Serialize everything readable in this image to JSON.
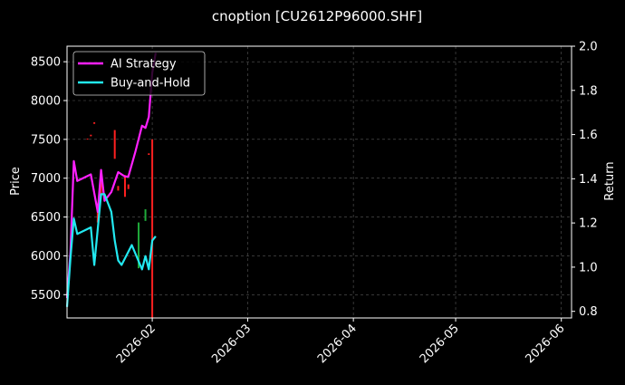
{
  "chart_data": {
    "type": "line",
    "title": "cnoption [CU2612P96000.SHF]",
    "ylabel": "Price",
    "y2label": "Return",
    "grid": true,
    "legend_placement": "top-left",
    "background": "#000000",
    "x_ticks": [
      "2026-02",
      "2026-03",
      "2026-04",
      "2026-05",
      "2026-06"
    ],
    "x_tick_dates": [
      "2026-02-01",
      "2026-03-01",
      "2026-04-01",
      "2026-05-01",
      "2026-06-01"
    ],
    "xlim": [
      "2026-01-07",
      "2026-06-04"
    ],
    "ylim": [
      5200,
      8700
    ],
    "y_ticks": [
      "5500",
      "6000",
      "6500",
      "7000",
      "7500",
      "8000",
      "8500"
    ],
    "y_tick_values": [
      5500,
      6000,
      6500,
      7000,
      7500,
      8000,
      8500
    ],
    "y2lim": [
      0.77,
      2.0
    ],
    "y2_ticks": [
      "0.8",
      "1.0",
      "1.2",
      "1.4",
      "1.6",
      "1.8",
      "2.0"
    ],
    "y2_tick_values": [
      0.8,
      1.0,
      1.2,
      1.4,
      1.6,
      1.8,
      2.0
    ],
    "candles": [
      {
        "date": "2026-01-13",
        "open": 7510,
        "close": 7500,
        "color": "#ff2020"
      },
      {
        "date": "2026-01-14",
        "open": 7560,
        "close": 7540,
        "color": "#ff2020"
      },
      {
        "date": "2026-01-15",
        "open": 7720,
        "close": 7700,
        "color": "#ff2020"
      },
      {
        "date": "2026-01-16",
        "open": 6600,
        "close": 6430,
        "color": "#ff2020"
      },
      {
        "date": "2026-01-17",
        "open": 6980,
        "close": 6800,
        "color": "#ff2020"
      },
      {
        "date": "2026-01-21",
        "open": 7620,
        "close": 7250,
        "color": "#ff2020"
      },
      {
        "date": "2026-01-22",
        "open": 6900,
        "close": 6840,
        "color": "#ff2020"
      },
      {
        "date": "2026-01-24",
        "open": 7040,
        "close": 6760,
        "color": "#ff2020"
      },
      {
        "date": "2026-01-25",
        "open": 6920,
        "close": 6860,
        "color": "#ff2020"
      },
      {
        "date": "2026-01-28",
        "open": 6430,
        "close": 5840,
        "color": "#1faa3a"
      },
      {
        "date": "2026-01-30",
        "open": 6600,
        "close": 6450,
        "color": "#1faa3a"
      },
      {
        "date": "2026-01-31",
        "open": 7320,
        "close": 7300,
        "color": "#ff2020"
      },
      {
        "date": "2026-02-01",
        "open": 7500,
        "close": 5200,
        "color": "#ff2020"
      }
    ],
    "series": [
      {
        "name": "AI Strategy",
        "color": "#ff20ff",
        "axis": "right",
        "points": [
          {
            "x": "2026-01-07",
            "y": 0.86
          },
          {
            "x": "2026-01-08",
            "y": 1.07
          },
          {
            "x": "2026-01-09",
            "y": 1.48
          },
          {
            "x": "2026-01-10",
            "y": 1.39
          },
          {
            "x": "2026-01-14",
            "y": 1.42
          },
          {
            "x": "2026-01-16",
            "y": 1.25
          },
          {
            "x": "2026-01-17",
            "y": 1.44
          },
          {
            "x": "2026-01-18",
            "y": 1.3
          },
          {
            "x": "2026-01-20",
            "y": 1.34
          },
          {
            "x": "2026-01-22",
            "y": 1.43
          },
          {
            "x": "2026-01-24",
            "y": 1.41
          },
          {
            "x": "2026-01-25",
            "y": 1.41
          },
          {
            "x": "2026-01-27",
            "y": 1.52
          },
          {
            "x": "2026-01-29",
            "y": 1.64
          },
          {
            "x": "2026-01-30",
            "y": 1.63
          },
          {
            "x": "2026-01-31",
            "y": 1.68
          },
          {
            "x": "2026-02-01",
            "y": 1.88
          },
          {
            "x": "2026-02-02",
            "y": 1.97
          }
        ]
      },
      {
        "name": "Buy-and-Hold",
        "color": "#22e8f0",
        "axis": "right",
        "points": [
          {
            "x": "2026-01-07",
            "y": 0.82
          },
          {
            "x": "2026-01-08",
            "y": 1.04
          },
          {
            "x": "2026-01-09",
            "y": 1.22
          },
          {
            "x": "2026-01-10",
            "y": 1.15
          },
          {
            "x": "2026-01-14",
            "y": 1.18
          },
          {
            "x": "2026-01-15",
            "y": 1.01
          },
          {
            "x": "2026-01-17",
            "y": 1.33
          },
          {
            "x": "2026-01-18",
            "y": 1.33
          },
          {
            "x": "2026-01-20",
            "y": 1.25
          },
          {
            "x": "2026-01-21",
            "y": 1.12
          },
          {
            "x": "2026-01-22",
            "y": 1.03
          },
          {
            "x": "2026-01-23",
            "y": 1.01
          },
          {
            "x": "2026-01-26",
            "y": 1.1
          },
          {
            "x": "2026-01-29",
            "y": 0.99
          },
          {
            "x": "2026-01-30",
            "y": 1.05
          },
          {
            "x": "2026-01-31",
            "y": 0.99
          },
          {
            "x": "2026-02-01",
            "y": 1.12
          },
          {
            "x": "2026-02-02",
            "y": 1.14
          }
        ]
      }
    ]
  }
}
